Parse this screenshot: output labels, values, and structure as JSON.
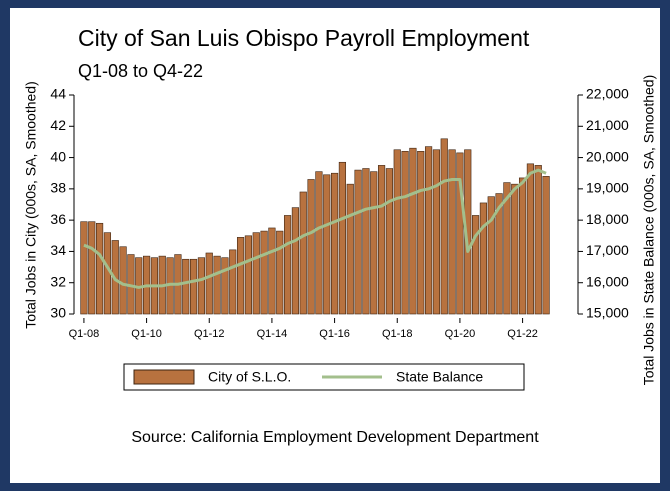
{
  "chart_data": {
    "type": "bar_line",
    "title": "City of San Luis Obispo Payroll Employment",
    "subtitle": "Q1-08 to Q4-22",
    "ylabel": "Total Jobs in City (000s, SA, Smoothed)",
    "y2label": "Total Jobs in State Balance (000s, SA, Smoothed)",
    "source": "Source: California Employment Development Department",
    "categories": [
      "Q1-08",
      null,
      null,
      null,
      null,
      null,
      null,
      null,
      "Q1-10",
      null,
      null,
      null,
      null,
      null,
      null,
      null,
      "Q1-12",
      null,
      null,
      null,
      null,
      null,
      null,
      null,
      "Q1-14",
      null,
      null,
      null,
      null,
      null,
      null,
      null,
      "Q1-16",
      null,
      null,
      null,
      null,
      null,
      null,
      null,
      "Q1-18",
      null,
      null,
      null,
      null,
      null,
      null,
      null,
      "Q1-20",
      null,
      null,
      null,
      null,
      null,
      null,
      null,
      "Q1-22",
      null,
      null,
      null
    ],
    "series": [
      {
        "name": "City of S.L.O.",
        "type": "bar",
        "color": "#b8723f",
        "values": [
          35.9,
          35.9,
          35.8,
          35.2,
          34.7,
          34.3,
          33.8,
          33.6,
          33.7,
          33.6,
          33.7,
          33.6,
          33.8,
          33.5,
          33.5,
          33.6,
          33.9,
          33.7,
          33.6,
          34.1,
          34.9,
          35.0,
          35.2,
          35.3,
          35.5,
          35.3,
          36.3,
          36.8,
          37.8,
          38.6,
          39.1,
          38.9,
          39.0,
          39.7,
          38.3,
          39.2,
          39.3,
          39.1,
          39.5,
          39.3,
          40.5,
          40.4,
          40.6,
          40.4,
          40.7,
          40.5,
          41.2,
          40.5,
          40.3,
          40.5,
          36.3,
          37.1,
          37.5,
          37.7,
          38.4,
          38.3,
          38.7,
          39.6,
          39.5,
          38.8
        ]
      },
      {
        "name": "State Balance",
        "type": "line",
        "axis": "y2",
        "color": "#a3bf8c",
        "values": [
          17200,
          17100,
          16900,
          16500,
          16100,
          15950,
          15900,
          15850,
          15900,
          15900,
          15900,
          15950,
          15950,
          16000,
          16050,
          16100,
          16200,
          16300,
          16400,
          16500,
          16600,
          16700,
          16800,
          16900,
          17000,
          17100,
          17250,
          17350,
          17500,
          17600,
          17750,
          17850,
          17950,
          18050,
          18150,
          18250,
          18350,
          18400,
          18450,
          18600,
          18700,
          18750,
          18850,
          18950,
          19000,
          19100,
          19250,
          19300,
          19300,
          17000,
          17500,
          17800,
          18000,
          18400,
          18700,
          19000,
          19200,
          19500,
          19600,
          19500
        ]
      }
    ],
    "ylim": [
      30,
      44
    ],
    "yticks": [
      30,
      32,
      34,
      36,
      38,
      40,
      42,
      44
    ],
    "y2lim": [
      15000,
      22000
    ],
    "y2ticks": [
      {
        "value": 15000,
        "label": "15,000"
      },
      {
        "value": 16000,
        "label": "16,000"
      },
      {
        "value": 17000,
        "label": "17,000"
      },
      {
        "value": 18000,
        "label": "18,000"
      },
      {
        "value": 19000,
        "label": "19,000"
      },
      {
        "value": 20000,
        "label": "20,000"
      },
      {
        "value": 21000,
        "label": "21,000"
      },
      {
        "value": 22000,
        "label": "22,000"
      }
    ]
  }
}
